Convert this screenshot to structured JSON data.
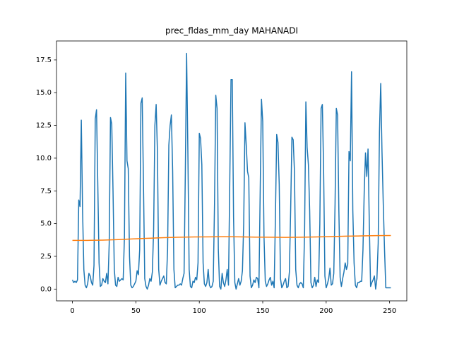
{
  "chart_data": {
    "type": "line",
    "title": "prec_fldas_mm_day MAHANADI",
    "x": [
      0,
      1,
      2,
      3,
      4,
      5,
      6,
      7,
      8,
      9,
      10,
      11,
      12,
      13,
      14,
      15,
      16,
      17,
      18,
      19,
      20,
      21,
      22,
      23,
      24,
      25,
      26,
      27,
      28,
      29,
      30,
      31,
      32,
      33,
      34,
      35,
      36,
      37,
      38,
      39,
      40,
      41,
      42,
      43,
      44,
      45,
      46,
      47,
      48,
      49,
      50,
      51,
      52,
      53,
      54,
      55,
      56,
      57,
      58,
      59,
      60,
      61,
      62,
      63,
      64,
      65,
      66,
      67,
      68,
      69,
      70,
      71,
      72,
      73,
      74,
      75,
      76,
      77,
      78,
      79,
      80,
      81,
      82,
      83,
      84,
      85,
      86,
      87,
      88,
      89,
      90,
      91,
      92,
      93,
      94,
      95,
      96,
      97,
      98,
      99,
      100,
      101,
      102,
      103,
      104,
      105,
      106,
      107,
      108,
      109,
      110,
      111,
      112,
      113,
      114,
      115,
      116,
      117,
      118,
      119,
      120,
      121,
      122,
      123,
      124,
      125,
      126,
      127,
      128,
      129,
      130,
      131,
      132,
      133,
      134,
      135,
      136,
      137,
      138,
      139,
      140,
      141,
      142,
      143,
      144,
      145,
      146,
      147,
      148,
      149,
      150,
      151,
      152,
      153,
      154,
      155,
      156,
      157,
      158,
      159,
      160,
      161,
      162,
      163,
      164,
      165,
      166,
      167,
      168,
      169,
      170,
      171,
      172,
      173,
      174,
      175,
      176,
      177,
      178,
      179,
      180,
      181,
      182,
      183,
      184,
      185,
      186,
      187,
      188,
      189,
      190,
      191,
      192,
      193,
      194,
      195,
      196,
      197,
      198,
      199,
      200,
      201,
      202,
      203,
      204,
      205,
      206,
      207,
      208,
      209,
      210,
      211,
      212,
      213,
      214,
      215,
      216,
      217,
      218,
      219,
      220,
      221,
      222,
      223,
      224,
      225,
      226,
      227,
      228,
      229,
      230,
      231,
      232,
      233,
      234,
      235,
      236,
      237,
      238,
      239,
      240,
      241,
      242,
      243,
      244,
      245,
      246,
      247,
      248,
      249,
      250,
      251
    ],
    "series": [
      {
        "color": "#1f77b4",
        "values": [
          0.7,
          0.5,
          0.6,
          0.5,
          0.7,
          6.8,
          6.3,
          12.9,
          6.0,
          1.5,
          0.3,
          0.1,
          0.4,
          1.2,
          1.0,
          0.5,
          0.3,
          1.8,
          13.0,
          13.7,
          8.0,
          2.0,
          0.2,
          0.3,
          0.8,
          0.6,
          0.5,
          1.2,
          0.4,
          3.5,
          13.1,
          12.6,
          7.5,
          1.5,
          0.3,
          0.2,
          0.9,
          0.6,
          0.7,
          0.8,
          0.7,
          4.0,
          16.5,
          9.8,
          9.2,
          2.5,
          0.3,
          0.1,
          0.2,
          0.4,
          0.6,
          1.4,
          1.1,
          3.0,
          14.2,
          14.6,
          8.0,
          0.8,
          0.2,
          0.0,
          0.3,
          0.8,
          0.6,
          1.3,
          4.5,
          12.5,
          14.1,
          10.5,
          1.5,
          0.3,
          0.6,
          0.8,
          1.0,
          0.5,
          0.4,
          3.0,
          11.0,
          12.5,
          13.3,
          9.0,
          1.5,
          0.1,
          0.2,
          0.3,
          0.3,
          0.4,
          0.3,
          0.8,
          1.2,
          9.0,
          18.0,
          10.5,
          1.5,
          0.2,
          0.1,
          0.6,
          0.5,
          0.9,
          0.7,
          2.0,
          11.9,
          11.5,
          9.5,
          2.0,
          0.4,
          0.2,
          0.5,
          1.5,
          0.3,
          0.1,
          0.2,
          0.6,
          6.5,
          14.8,
          13.8,
          3.0,
          0.2,
          0.0,
          1.2,
          0.5,
          0.2,
          0.7,
          1.5,
          0.3,
          8.0,
          16.0,
          16.0,
          5.5,
          0.5,
          0.0,
          0.4,
          0.8,
          0.3,
          0.6,
          1.4,
          5.0,
          12.7,
          11.0,
          9.0,
          8.5,
          1.0,
          0.1,
          0.3,
          0.7,
          0.5,
          0.9,
          0.8,
          0.1,
          7.5,
          14.5,
          12.8,
          4.0,
          0.6,
          0.2,
          0.4,
          0.7,
          0.9,
          0.3,
          0.6,
          0.1,
          5.5,
          11.8,
          11.2,
          8.0,
          0.8,
          0.1,
          0.3,
          0.6,
          0.8,
          0.1,
          0.2,
          1.3,
          6.0,
          11.6,
          11.4,
          9.0,
          1.5,
          0.3,
          0.1,
          0.4,
          0.5,
          0.4,
          0.1,
          4.5,
          14.3,
          10.8,
          9.5,
          6.0,
          0.5,
          0.1,
          0.3,
          0.9,
          0.2,
          0.7,
          0.5,
          5.0,
          13.8,
          14.1,
          9.0,
          1.0,
          0.1,
          0.4,
          0.8,
          1.6,
          0.3,
          0.4,
          1.2,
          6.5,
          13.8,
          13.3,
          6.0,
          0.9,
          0.2,
          0.8,
          1.3,
          2.0,
          1.5,
          1.9,
          10.5,
          9.8,
          16.6,
          6.0,
          2.0,
          0.3,
          0.1,
          0.5,
          0.5,
          0.6,
          0.6,
          3.0,
          7.5,
          10.4,
          8.6,
          10.7,
          5.0,
          0.2,
          0.5,
          0.7,
          1.0,
          0.0,
          0.8,
          3.5,
          12.0,
          15.7,
          10.5,
          6.5,
          3.0,
          0.1,
          0.1,
          0.1,
          0.1,
          0.1
        ]
      },
      {
        "color": "#ff7f0e",
        "x": [
          0,
          12,
          24,
          36,
          48,
          60,
          72,
          84,
          96,
          108,
          120,
          132,
          144,
          156,
          168,
          180,
          192,
          204,
          216,
          228,
          240,
          251
        ],
        "values": [
          3.72,
          3.72,
          3.74,
          3.78,
          3.83,
          3.88,
          3.93,
          3.96,
          3.98,
          3.99,
          4.0,
          3.99,
          3.97,
          3.96,
          3.95,
          3.96,
          3.98,
          4.01,
          4.04,
          4.06,
          4.08,
          4.09
        ]
      }
    ],
    "xlim": [
      -12.55,
      263.55
    ],
    "ylim": [
      -0.9,
      18.95
    ],
    "xticks": [
      0,
      50,
      100,
      150,
      200,
      250
    ],
    "yticks": [
      {
        "value": 0,
        "label": "0.0"
      },
      2.5,
      {
        "value": 5,
        "label": "5.0"
      },
      7.5,
      {
        "value": 10,
        "label": "10.0"
      },
      12.5,
      {
        "value": 15,
        "label": "15.0"
      },
      17.5
    ]
  }
}
